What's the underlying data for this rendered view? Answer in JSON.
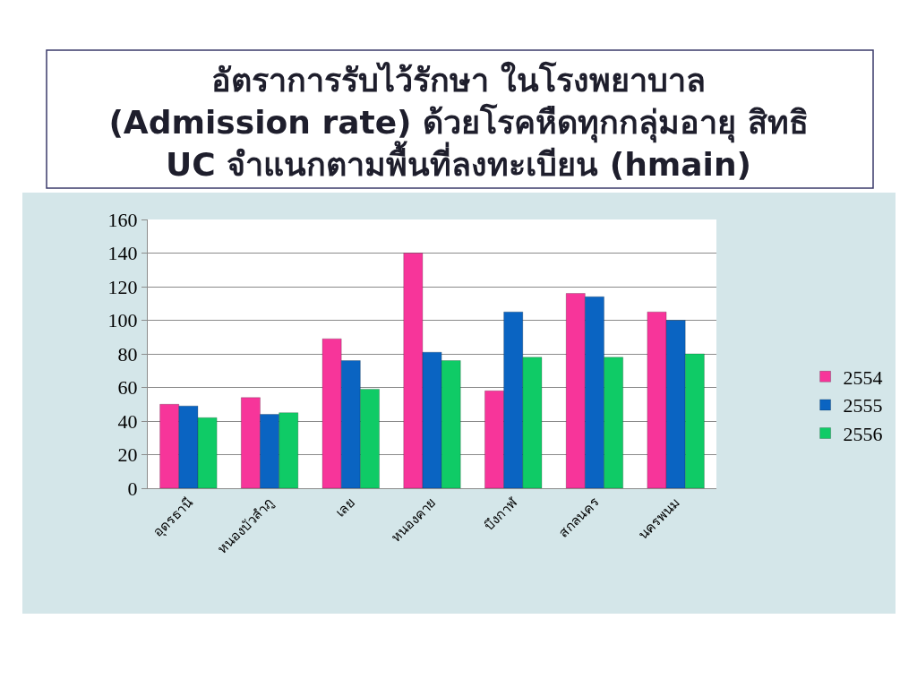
{
  "chart_data": {
    "type": "bar",
    "title": "อัตราการรับไว้รักษา ในโรงพยาบาล\n(Admission rate) ด้วยโรคหืดทุกกลุ่มอายุ สิทธิ\nUC จำแนกตามพื้นที่ลงทะเบียน (hmain)",
    "categories": [
      "อุดรธานี",
      "หนองบัวลำภู",
      "เลย",
      "หนองคาย",
      "บึงกาฬ",
      "สกลนคร",
      "นครพนม"
    ],
    "series": [
      {
        "name": "2554",
        "color": "#f7359a",
        "values": [
          50,
          54,
          89,
          140,
          58,
          116,
          105
        ]
      },
      {
        "name": "2555",
        "color": "#0a64c2",
        "values": [
          49,
          44,
          76,
          81,
          105,
          114,
          100
        ]
      },
      {
        "name": "2556",
        "color": "#0fcb66",
        "values": [
          42,
          45,
          59,
          76,
          78,
          78,
          80
        ]
      }
    ],
    "ylim": [
      0,
      160
    ],
    "yticks": [
      0,
      20,
      40,
      60,
      80,
      100,
      120,
      140,
      160
    ],
    "grid": "y",
    "legend": "right"
  }
}
